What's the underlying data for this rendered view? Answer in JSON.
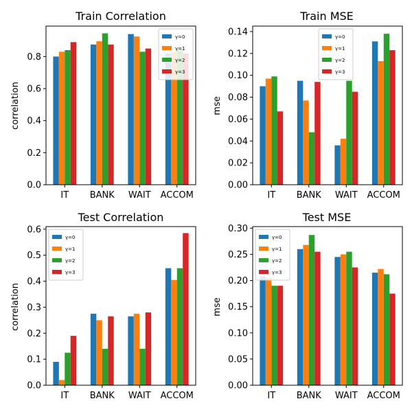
{
  "series_colors": [
    "#1f77b4",
    "#ff7f0e",
    "#2ca02c",
    "#d62728"
  ],
  "chart_data": [
    {
      "type": "bar",
      "title": "Train Correlation",
      "ylabel": "correlation",
      "categories": [
        "IT",
        "BANK",
        "WAIT",
        "ACCOM"
      ],
      "series": [
        {
          "name": "γ=0",
          "values": [
            0.8,
            0.875,
            0.94,
            0.82
          ]
        },
        {
          "name": "γ=1",
          "values": [
            0.83,
            0.895,
            0.925,
            0.83
          ]
        },
        {
          "name": "γ=2",
          "values": [
            0.84,
            0.945,
            0.83,
            0.85
          ]
        },
        {
          "name": "γ=3",
          "values": [
            0.89,
            0.875,
            0.85,
            0.82
          ]
        }
      ],
      "ylim": [
        0,
        0.99
      ],
      "yticks": [
        0.0,
        0.2,
        0.4,
        0.6,
        0.8
      ],
      "ytick_labels": [
        "0.0",
        "0.2",
        "0.4",
        "0.6",
        "0.8"
      ],
      "legend_position": "top-right"
    },
    {
      "type": "bar",
      "title": "Train MSE",
      "ylabel": "mse",
      "categories": [
        "IT",
        "BANK",
        "WAIT",
        "ACCOM"
      ],
      "series": [
        {
          "name": "γ=0",
          "values": [
            0.09,
            0.095,
            0.036,
            0.131
          ]
        },
        {
          "name": "γ=1",
          "values": [
            0.097,
            0.077,
            0.042,
            0.113
          ]
        },
        {
          "name": "γ=2",
          "values": [
            0.099,
            0.048,
            0.095,
            0.138
          ]
        },
        {
          "name": "γ=3",
          "values": [
            0.067,
            0.094,
            0.085,
            0.123
          ]
        }
      ],
      "ylim": [
        0,
        0.145
      ],
      "yticks": [
        0.0,
        0.02,
        0.04,
        0.06,
        0.08,
        0.1,
        0.12,
        0.14
      ],
      "ytick_labels": [
        "0.00",
        "0.02",
        "0.04",
        "0.06",
        "0.08",
        "0.10",
        "0.12",
        "0.14"
      ],
      "legend_position": "top-center"
    },
    {
      "type": "bar",
      "title": "Test Correlation",
      "ylabel": "correlation",
      "categories": [
        "IT",
        "BANK",
        "WAIT",
        "ACCOM"
      ],
      "series": [
        {
          "name": "γ=0",
          "values": [
            0.09,
            0.275,
            0.265,
            0.45
          ]
        },
        {
          "name": "γ=1",
          "values": [
            0.02,
            0.25,
            0.275,
            0.405
          ]
        },
        {
          "name": "γ=2",
          "values": [
            0.125,
            0.14,
            0.14,
            0.45
          ]
        },
        {
          "name": "γ=3",
          "values": [
            0.19,
            0.265,
            0.28,
            0.585
          ]
        }
      ],
      "ylim": [
        0,
        0.61
      ],
      "yticks": [
        0.0,
        0.1,
        0.2,
        0.3,
        0.4,
        0.5,
        0.6
      ],
      "ytick_labels": [
        "0.0",
        "0.1",
        "0.2",
        "0.3",
        "0.4",
        "0.5",
        "0.6"
      ],
      "legend_position": "top-left"
    },
    {
      "type": "bar",
      "title": "Test MSE",
      "ylabel": "mse",
      "categories": [
        "IT",
        "BANK",
        "WAIT",
        "ACCOM"
      ],
      "series": [
        {
          "name": "γ=0",
          "values": [
            0.208,
            0.26,
            0.245,
            0.215
          ]
        },
        {
          "name": "γ=1",
          "values": [
            0.205,
            0.268,
            0.25,
            0.222
          ]
        },
        {
          "name": "γ=2",
          "values": [
            0.19,
            0.287,
            0.255,
            0.212
          ]
        },
        {
          "name": "γ=3",
          "values": [
            0.19,
            0.255,
            0.225,
            0.175
          ]
        }
      ],
      "ylim": [
        0,
        0.303
      ],
      "yticks": [
        0.0,
        0.05,
        0.1,
        0.15,
        0.2,
        0.25,
        0.3
      ],
      "ytick_labels": [
        "0.00",
        "0.05",
        "0.10",
        "0.15",
        "0.20",
        "0.25",
        "0.30"
      ],
      "legend_position": "top-left"
    }
  ]
}
